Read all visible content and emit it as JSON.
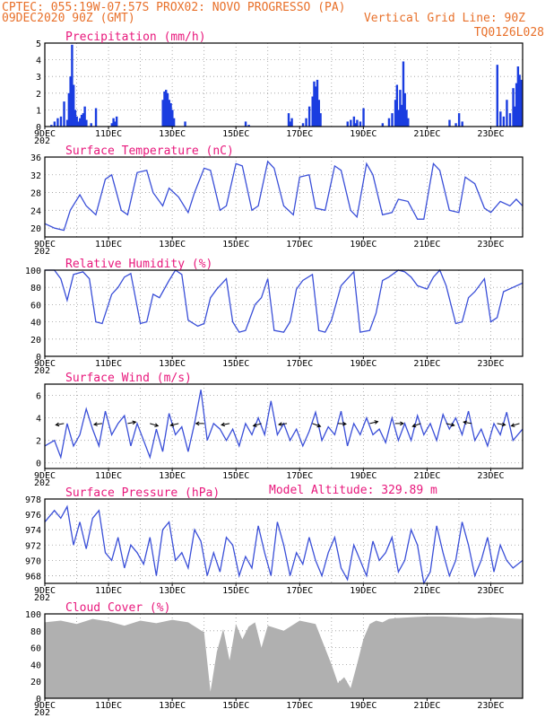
{
  "header": {
    "line1_left": "CPTEC:   055:19W-07:57S   PROX02: NOVO PROGRESSO (PA)",
    "line2_left": "09DEC2020 90Z (GMT)",
    "line2_right": "Vertical Grid Line: 90Z",
    "line3_right": "TQ0126L028",
    "model_altitude": "Model Altitude: 329.89 m"
  },
  "x_axis": {
    "ticks": [
      "9DEC",
      "11DEC",
      "13DEC",
      "15DEC",
      "17DEC",
      "19DEC",
      "21DEC",
      "23DEC"
    ],
    "year_fragment": "202",
    "range_days": [
      0,
      15
    ]
  },
  "chart_data": [
    {
      "type": "bar",
      "title": "Precipitation (mm/h)",
      "ylim": [
        0,
        5
      ],
      "yticks": [
        "0",
        "1",
        "2",
        "3",
        "4",
        "5"
      ],
      "color": "#1a3de0",
      "x": [
        0.2,
        0.3,
        0.4,
        0.5,
        0.6,
        0.7,
        0.75,
        0.8,
        0.85,
        0.9,
        0.95,
        1.0,
        1.05,
        1.1,
        1.15,
        1.2,
        1.25,
        1.3,
        1.45,
        1.6,
        2.1,
        2.15,
        2.2,
        2.25,
        3.7,
        3.75,
        3.8,
        3.85,
        3.9,
        3.95,
        4.0,
        4.05,
        4.4,
        6.3,
        6.4,
        7.65,
        7.7,
        7.75,
        8.1,
        8.2,
        8.3,
        8.4,
        8.45,
        8.5,
        8.55,
        8.6,
        8.65,
        9.5,
        9.6,
        9.7,
        9.75,
        9.8,
        9.9,
        10.0,
        10.6,
        10.8,
        10.9,
        11.0,
        11.05,
        11.1,
        11.15,
        11.2,
        11.25,
        11.3,
        11.35,
        11.4,
        12.7,
        12.9,
        13.0,
        13.1,
        14.2,
        14.3,
        14.4,
        14.5,
        14.6,
        14.7,
        14.75,
        14.8,
        14.85,
        14.9,
        14.95
      ],
      "values": [
        0.1,
        0.3,
        0.5,
        0.6,
        1.5,
        0.4,
        2.0,
        3.0,
        4.9,
        2.5,
        1.0,
        0.6,
        0.3,
        0.5,
        0.7,
        0.8,
        1.2,
        0.4,
        0.2,
        1.1,
        0.2,
        0.5,
        0.3,
        0.6,
        1.6,
        2.1,
        2.2,
        2.0,
        1.6,
        1.4,
        1.0,
        0.5,
        0.3,
        0.3,
        0.1,
        0.8,
        0.3,
        0.5,
        0.2,
        0.5,
        1.2,
        1.8,
        2.7,
        2.4,
        2.8,
        1.6,
        0.8,
        0.3,
        0.4,
        0.6,
        0.2,
        0.4,
        0.3,
        1.1,
        0.2,
        0.5,
        0.8,
        1.6,
        2.5,
        1.0,
        2.2,
        1.3,
        3.9,
        2.0,
        1.0,
        0.5,
        0.4,
        0.2,
        0.8,
        0.3,
        3.7,
        0.9,
        0.6,
        1.6,
        0.8,
        2.3,
        1.2,
        2.6,
        3.6,
        3.1,
        2.8
      ]
    },
    {
      "type": "line",
      "title": "Surface Temperature (nC)",
      "ylim": [
        18,
        36
      ],
      "yticks": [
        "20",
        "24",
        "28",
        "32",
        "36"
      ],
      "color": "#3a4fd8",
      "x": [
        0,
        0.3,
        0.6,
        0.8,
        1.1,
        1.3,
        1.6,
        1.9,
        2.1,
        2.4,
        2.6,
        2.9,
        3.2,
        3.4,
        3.7,
        3.9,
        4.2,
        4.5,
        4.7,
        5.0,
        5.2,
        5.5,
        5.7,
        6.0,
        6.2,
        6.5,
        6.7,
        7.0,
        7.2,
        7.5,
        7.8,
        8.0,
        8.3,
        8.5,
        8.8,
        9.1,
        9.3,
        9.6,
        9.8,
        10.1,
        10.3,
        10.6,
        10.9,
        11.1,
        11.4,
        11.7,
        11.9,
        12.2,
        12.4,
        12.7,
        13.0,
        13.2,
        13.5,
        13.8,
        14.0,
        14.3,
        14.6,
        14.8,
        15.0
      ],
      "values": [
        21,
        20,
        19.5,
        24,
        27.5,
        25,
        23,
        31,
        32,
        24,
        23,
        32.5,
        33,
        28,
        25,
        29,
        27,
        23.5,
        28,
        33.5,
        33,
        24,
        25,
        34.5,
        34,
        24,
        25,
        35,
        33.5,
        25,
        23,
        31.5,
        32,
        24.5,
        24,
        34,
        33,
        24,
        22.5,
        34.5,
        32,
        23,
        23.5,
        26.5,
        26,
        22,
        22,
        34.5,
        33,
        24,
        23.5,
        31.5,
        30,
        24.5,
        23.5,
        26,
        25,
        26.5,
        25
      ]
    },
    {
      "type": "line",
      "title": "Relative Humidity (%)",
      "ylim": [
        0,
        100
      ],
      "yticks": [
        "0",
        "20",
        "40",
        "60",
        "80",
        "100"
      ],
      "color": "#3a4fd8",
      "x": [
        0,
        0.3,
        0.5,
        0.7,
        0.9,
        1.2,
        1.4,
        1.6,
        1.8,
        2.1,
        2.3,
        2.5,
        2.7,
        3.0,
        3.2,
        3.4,
        3.6,
        3.9,
        4.1,
        4.3,
        4.5,
        4.8,
        5.0,
        5.2,
        5.4,
        5.7,
        5.9,
        6.1,
        6.3,
        6.6,
        6.8,
        7.0,
        7.2,
        7.5,
        7.7,
        7.9,
        8.1,
        8.4,
        8.6,
        8.8,
        9.0,
        9.3,
        9.5,
        9.7,
        9.9,
        10.2,
        10.4,
        10.6,
        10.8,
        11.1,
        11.3,
        11.5,
        11.7,
        12.0,
        12.2,
        12.4,
        12.6,
        12.9,
        13.1,
        13.3,
        13.5,
        13.8,
        14.0,
        14.2,
        14.4,
        14.7,
        15.0
      ],
      "values": [
        100,
        100,
        90,
        65,
        95,
        98,
        90,
        40,
        38,
        72,
        80,
        92,
        96,
        38,
        40,
        72,
        68,
        88,
        100,
        95,
        42,
        35,
        38,
        68,
        78,
        90,
        40,
        28,
        30,
        60,
        68,
        90,
        30,
        28,
        40,
        78,
        88,
        95,
        30,
        28,
        42,
        82,
        90,
        98,
        28,
        30,
        50,
        88,
        92,
        100,
        98,
        92,
        82,
        78,
        92,
        100,
        82,
        38,
        40,
        68,
        75,
        90,
        40,
        45,
        75,
        80,
        85
      ]
    },
    {
      "type": "line",
      "title": "Surface Wind (m/s)",
      "ylim": [
        -0.5,
        7
      ],
      "yticks": [
        "0",
        "2",
        "4",
        "6"
      ],
      "color": "#3a4fd8",
      "x": [
        0,
        0.3,
        0.5,
        0.7,
        0.9,
        1.1,
        1.3,
        1.5,
        1.7,
        1.9,
        2.1,
        2.3,
        2.5,
        2.7,
        2.9,
        3.1,
        3.3,
        3.5,
        3.7,
        3.9,
        4.1,
        4.3,
        4.5,
        4.7,
        4.9,
        5.1,
        5.3,
        5.5,
        5.7,
        5.9,
        6.1,
        6.3,
        6.5,
        6.7,
        6.9,
        7.1,
        7.3,
        7.5,
        7.7,
        7.9,
        8.1,
        8.3,
        8.5,
        8.7,
        8.9,
        9.1,
        9.3,
        9.5,
        9.7,
        9.9,
        10.1,
        10.3,
        10.5,
        10.7,
        10.9,
        11.1,
        11.3,
        11.5,
        11.7,
        11.9,
        12.1,
        12.3,
        12.5,
        12.7,
        12.9,
        13.1,
        13.3,
        13.5,
        13.7,
        13.9,
        14.1,
        14.3,
        14.5,
        14.7,
        15.0
      ],
      "values": [
        1.5,
        2.0,
        0.5,
        3.5,
        1.5,
        2.5,
        4.8,
        3.0,
        1.5,
        4.6,
        2.5,
        3.5,
        4.2,
        1.5,
        3.5,
        2.0,
        0.5,
        3.0,
        1.0,
        4.4,
        2.5,
        3.2,
        1.0,
        3.5,
        6.5,
        2.0,
        3.5,
        3.0,
        2.0,
        3.0,
        1.5,
        3.5,
        2.5,
        4.0,
        2.5,
        5.5,
        2.5,
        3.5,
        2.0,
        3.0,
        1.5,
        2.8,
        4.5,
        2.0,
        3.2,
        2.5,
        4.6,
        1.5,
        3.5,
        2.5,
        4.0,
        2.5,
        3.0,
        1.8,
        4.0,
        2.0,
        3.5,
        2.0,
        4.2,
        2.5,
        3.5,
        2.0,
        4.3,
        3.0,
        4.0,
        2.5,
        4.6,
        2.0,
        3.0,
        1.5,
        3.5,
        2.5,
        4.5,
        2.0,
        3.0
      ],
      "arrows": [
        {
          "x": 0.6,
          "dx": -1,
          "dy": 0.3
        },
        {
          "x": 1.8,
          "dx": -1,
          "dy": 0.2
        },
        {
          "x": 2.6,
          "dx": 1,
          "dy": -0.3
        },
        {
          "x": 3.3,
          "dx": 1,
          "dy": 0.5
        },
        {
          "x": 4.2,
          "dx": -1,
          "dy": 0.4
        },
        {
          "x": 5.0,
          "dx": -1,
          "dy": 0.0
        },
        {
          "x": 5.8,
          "dx": -1,
          "dy": 0.3
        },
        {
          "x": 6.8,
          "dx": -1,
          "dy": 0.5
        },
        {
          "x": 7.6,
          "dx": -1,
          "dy": 0.2
        },
        {
          "x": 8.4,
          "dx": 1,
          "dy": 0.6
        },
        {
          "x": 9.2,
          "dx": 1,
          "dy": 0.1
        },
        {
          "x": 10.2,
          "dx": 1,
          "dy": -0.4
        },
        {
          "x": 11.0,
          "dx": 1,
          "dy": 0.0
        },
        {
          "x": 11.8,
          "dx": -1,
          "dy": 0.6
        },
        {
          "x": 12.6,
          "dx": 1,
          "dy": 0.4
        },
        {
          "x": 13.4,
          "dx": -1,
          "dy": -0.3
        },
        {
          "x": 14.2,
          "dx": 1,
          "dy": 0.3
        },
        {
          "x": 14.9,
          "dx": -1,
          "dy": 0.5
        }
      ]
    },
    {
      "type": "line",
      "title": "Surface Pressure (hPa)",
      "ylim": [
        967,
        978
      ],
      "yticks": [
        "968",
        "970",
        "972",
        "974",
        "976",
        "978"
      ],
      "color": "#3a4fd8",
      "x": [
        0,
        0.3,
        0.5,
        0.7,
        0.9,
        1.1,
        1.3,
        1.5,
        1.7,
        1.9,
        2.1,
        2.3,
        2.5,
        2.7,
        2.9,
        3.1,
        3.3,
        3.5,
        3.7,
        3.9,
        4.1,
        4.3,
        4.5,
        4.7,
        4.9,
        5.1,
        5.3,
        5.5,
        5.7,
        5.9,
        6.1,
        6.3,
        6.5,
        6.7,
        6.9,
        7.1,
        7.3,
        7.5,
        7.7,
        7.9,
        8.1,
        8.3,
        8.5,
        8.7,
        8.9,
        9.1,
        9.3,
        9.5,
        9.7,
        9.9,
        10.1,
        10.3,
        10.5,
        10.7,
        10.9,
        11.1,
        11.3,
        11.5,
        11.7,
        11.9,
        12.1,
        12.3,
        12.5,
        12.7,
        12.9,
        13.1,
        13.3,
        13.5,
        13.7,
        13.9,
        14.1,
        14.3,
        14.5,
        14.7,
        15.0
      ],
      "values": [
        975,
        976.5,
        975.5,
        977,
        972,
        975,
        971.5,
        975.5,
        976.5,
        971,
        970,
        973,
        969,
        972,
        971,
        969.5,
        973,
        968,
        974,
        975,
        970,
        971,
        969,
        974,
        972.5,
        968,
        971,
        968.5,
        973,
        972,
        968,
        970.5,
        969,
        974.5,
        971,
        968,
        975,
        972,
        968,
        971,
        969.5,
        973,
        970,
        968,
        971,
        973,
        969,
        967.5,
        972,
        970,
        968,
        972.5,
        970,
        971,
        973,
        968.5,
        970,
        974,
        972,
        967,
        968.5,
        974.5,
        971,
        968,
        970,
        975,
        972,
        968,
        970,
        973,
        968.5,
        972,
        970,
        969,
        970
      ]
    },
    {
      "type": "area",
      "title": "Cloud Cover (%)",
      "ylim": [
        0,
        100
      ],
      "yticks": [
        "0",
        "20",
        "40",
        "60",
        "80",
        "100"
      ],
      "color": "#b0b0b0",
      "x": [
        0,
        0.5,
        1.0,
        1.5,
        2.0,
        2.5,
        3.0,
        3.5,
        4.0,
        4.5,
        5.0,
        5.2,
        5.4,
        5.6,
        5.8,
        6.0,
        6.2,
        6.4,
        6.6,
        6.8,
        7.0,
        7.5,
        8.0,
        8.5,
        9.0,
        9.2,
        9.4,
        9.6,
        9.8,
        10.0,
        10.2,
        10.4,
        10.6,
        10.8,
        11.0,
        11.5,
        12.0,
        12.5,
        13.0,
        13.5,
        14.0,
        14.5,
        15.0
      ],
      "values": [
        90,
        92,
        88,
        94,
        91,
        86,
        92,
        89,
        93,
        90,
        78,
        8,
        55,
        82,
        45,
        88,
        70,
        85,
        90,
        60,
        86,
        80,
        92,
        88,
        40,
        18,
        25,
        12,
        40,
        70,
        88,
        92,
        90,
        94,
        95,
        96,
        97,
        97,
        96,
        95,
        96,
        95,
        94
      ]
    }
  ]
}
